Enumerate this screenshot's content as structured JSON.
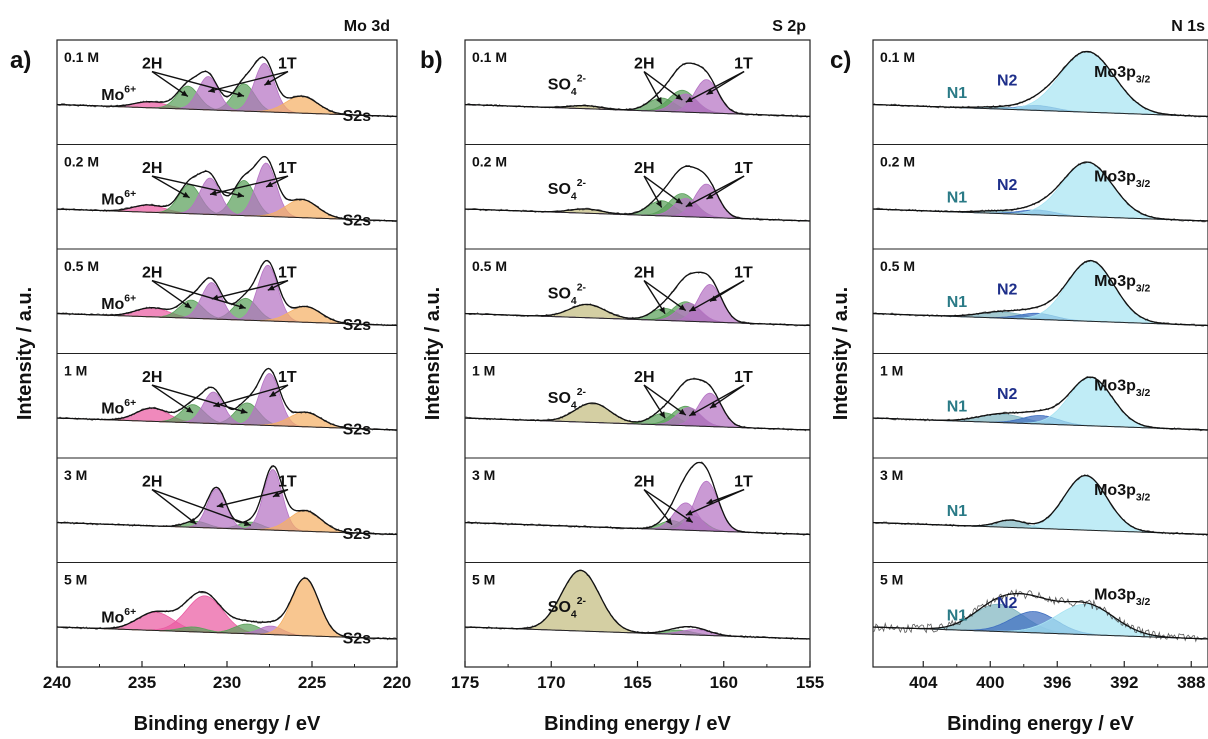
{
  "chart_data": [
    {
      "type": "line",
      "panel_label": "a)",
      "title": "Mo 3d",
      "xlabel": "Binding energy / eV",
      "ylabel": "Intensity / a.u.",
      "xlim": [
        240,
        220
      ],
      "xticks": [
        240,
        235,
        230,
        225,
        220
      ],
      "yticks": "none",
      "stack": [
        {
          "concentration": "0.1 M",
          "labels": [
            "Mo6+",
            "2H",
            "1T",
            "S2s"
          ],
          "components": [
            {
              "name": "Mo6+",
              "color": "#ea5ba2",
              "center": 234.5,
              "fwhm": 2.2,
              "height": 0.1
            },
            {
              "name": "2H",
              "color": "#5aa05a",
              "center": 232.3,
              "fwhm": 1.5,
              "height": 0.38
            },
            {
              "name": "2H",
              "color": "#5aa05a",
              "center": 229.0,
              "fwhm": 1.5,
              "height": 0.45
            },
            {
              "name": "1T",
              "color": "#b573c4",
              "center": 231.1,
              "fwhm": 1.4,
              "height": 0.55
            },
            {
              "name": "1T",
              "color": "#b573c4",
              "center": 227.8,
              "fwhm": 1.4,
              "height": 0.8
            },
            {
              "name": "S2s",
              "color": "#f5b065",
              "center": 225.6,
              "fwhm": 2.2,
              "height": 0.28
            }
          ]
        },
        {
          "concentration": "0.2 M",
          "labels": [
            "Mo6+",
            "2H",
            "1T",
            "S2s"
          ],
          "components": [
            {
              "name": "Mo6+",
              "color": "#ea5ba2",
              "center": 234.6,
              "fwhm": 2.2,
              "height": 0.12
            },
            {
              "name": "2H",
              "color": "#5aa05a",
              "center": 232.2,
              "fwhm": 1.5,
              "height": 0.48
            },
            {
              "name": "2H",
              "color": "#5aa05a",
              "center": 229.0,
              "fwhm": 1.5,
              "height": 0.58
            },
            {
              "name": "1T",
              "color": "#b573c4",
              "center": 231.0,
              "fwhm": 1.4,
              "height": 0.6
            },
            {
              "name": "1T",
              "color": "#b573c4",
              "center": 227.7,
              "fwhm": 1.4,
              "height": 0.88
            },
            {
              "name": "S2s",
              "color": "#f5b065",
              "center": 225.6,
              "fwhm": 2.2,
              "height": 0.3
            }
          ]
        },
        {
          "concentration": "0.5 M",
          "labels": [
            "Mo6+",
            "2H",
            "1T",
            "S2s"
          ],
          "components": [
            {
              "name": "Mo6+",
              "color": "#ea5ba2",
              "center": 234.4,
              "fwhm": 2.3,
              "height": 0.15
            },
            {
              "name": "2H",
              "color": "#5aa05a",
              "center": 232.1,
              "fwhm": 1.6,
              "height": 0.3
            },
            {
              "name": "2H",
              "color": "#5aa05a",
              "center": 228.9,
              "fwhm": 1.6,
              "height": 0.36
            },
            {
              "name": "1T",
              "color": "#b573c4",
              "center": 230.9,
              "fwhm": 1.4,
              "height": 0.6
            },
            {
              "name": "1T",
              "color": "#b573c4",
              "center": 227.6,
              "fwhm": 1.4,
              "height": 0.92
            },
            {
              "name": "S2s",
              "color": "#f5b065",
              "center": 225.4,
              "fwhm": 2.2,
              "height": 0.26
            }
          ]
        },
        {
          "concentration": "1 M",
          "labels": [
            "Mo6+",
            "2H",
            "1T",
            "S2s"
          ],
          "components": [
            {
              "name": "Mo6+",
              "color": "#ea5ba2",
              "center": 234.4,
              "fwhm": 2.2,
              "height": 0.22
            },
            {
              "name": "2H",
              "color": "#5aa05a",
              "center": 232.0,
              "fwhm": 1.6,
              "height": 0.3
            },
            {
              "name": "2H",
              "color": "#5aa05a",
              "center": 228.8,
              "fwhm": 1.6,
              "height": 0.36
            },
            {
              "name": "1T",
              "color": "#b573c4",
              "center": 230.8,
              "fwhm": 1.4,
              "height": 0.52
            },
            {
              "name": "1T",
              "color": "#b573c4",
              "center": 227.5,
              "fwhm": 1.4,
              "height": 0.86
            },
            {
              "name": "S2s",
              "color": "#f5b065",
              "center": 225.4,
              "fwhm": 2.2,
              "height": 0.24
            }
          ]
        },
        {
          "concentration": "3 M",
          "labels": [
            "2H",
            "1T",
            "S2s"
          ],
          "components": [
            {
              "name": "2H",
              "color": "#5aa05a",
              "center": 231.8,
              "fwhm": 1.6,
              "height": 0.1
            },
            {
              "name": "2H",
              "color": "#5aa05a",
              "center": 228.6,
              "fwhm": 1.6,
              "height": 0.12
            },
            {
              "name": "1T",
              "color": "#b573c4",
              "center": 230.6,
              "fwhm": 1.3,
              "height": 0.65
            },
            {
              "name": "1T",
              "color": "#b573c4",
              "center": 227.3,
              "fwhm": 1.3,
              "height": 1.0
            },
            {
              "name": "S2s",
              "color": "#f5b065",
              "center": 225.4,
              "fwhm": 2.2,
              "height": 0.34
            }
          ]
        },
        {
          "concentration": "5 M",
          "labels": [
            "Mo6+",
            "S2s"
          ],
          "components": [
            {
              "name": "Mo6+",
              "color": "#ea5ba2",
              "center": 234.2,
              "fwhm": 2.5,
              "height": 0.3
            },
            {
              "name": "Mo6+",
              "color": "#ea5ba2",
              "center": 231.3,
              "fwhm": 2.5,
              "height": 0.6
            },
            {
              "name": "2H",
              "color": "#5aa05a",
              "center": 232.0,
              "fwhm": 1.8,
              "height": 0.08
            },
            {
              "name": "2H",
              "color": "#5aa05a",
              "center": 228.8,
              "fwhm": 1.8,
              "height": 0.16
            },
            {
              "name": "1T",
              "color": "#b573c4",
              "center": 227.4,
              "fwhm": 1.6,
              "height": 0.14
            },
            {
              "name": "S2s",
              "color": "#f5b065",
              "center": 225.4,
              "fwhm": 1.9,
              "height": 0.95
            }
          ]
        }
      ]
    },
    {
      "type": "line",
      "panel_label": "b)",
      "title": "S 2p",
      "xlabel": "Binding energy / eV",
      "ylabel": "Intensity / a.u.",
      "xlim": [
        175,
        155
      ],
      "xticks": [
        175,
        170,
        165,
        160,
        155
      ],
      "yticks": "none",
      "stack": [
        {
          "concentration": "0.1 M",
          "labels": [
            "SO42-",
            "2H",
            "1T"
          ],
          "components": [
            {
              "name": "SO42-",
              "color": "#c3bc80",
              "center": 168.0,
              "fwhm": 2.2,
              "height": 0.05
            },
            {
              "name": "2H",
              "color": "#5aa05a",
              "center": 163.6,
              "fwhm": 1.8,
              "height": 0.22
            },
            {
              "name": "2H",
              "color": "#5aa05a",
              "center": 162.4,
              "fwhm": 1.8,
              "height": 0.36
            },
            {
              "name": "1T",
              "color": "#b573c4",
              "center": 162.2,
              "fwhm": 1.6,
              "height": 0.3
            },
            {
              "name": "1T",
              "color": "#b573c4",
              "center": 161.0,
              "fwhm": 1.6,
              "height": 0.55
            }
          ]
        },
        {
          "concentration": "0.2 M",
          "labels": [
            "SO42-",
            "2H",
            "1T"
          ],
          "components": [
            {
              "name": "SO42-",
              "color": "#c3bc80",
              "center": 168.0,
              "fwhm": 2.2,
              "height": 0.07
            },
            {
              "name": "2H",
              "color": "#5aa05a",
              "center": 163.6,
              "fwhm": 1.8,
              "height": 0.25
            },
            {
              "name": "2H",
              "color": "#5aa05a",
              "center": 162.4,
              "fwhm": 1.8,
              "height": 0.38
            },
            {
              "name": "1T",
              "color": "#b573c4",
              "center": 162.2,
              "fwhm": 1.6,
              "height": 0.3
            },
            {
              "name": "1T",
              "color": "#b573c4",
              "center": 161.0,
              "fwhm": 1.6,
              "height": 0.55
            }
          ]
        },
        {
          "concentration": "0.5 M",
          "labels": [
            "SO42-",
            "2H",
            "1T"
          ],
          "components": [
            {
              "name": "SO42-",
              "color": "#c3bc80",
              "center": 167.9,
              "fwhm": 2.4,
              "height": 0.22
            },
            {
              "name": "2H",
              "color": "#5aa05a",
              "center": 163.4,
              "fwhm": 1.8,
              "height": 0.2
            },
            {
              "name": "2H",
              "color": "#5aa05a",
              "center": 162.2,
              "fwhm": 1.8,
              "height": 0.32
            },
            {
              "name": "1T",
              "color": "#b573c4",
              "center": 162.0,
              "fwhm": 1.6,
              "height": 0.3
            },
            {
              "name": "1T",
              "color": "#b573c4",
              "center": 160.8,
              "fwhm": 1.6,
              "height": 0.62
            }
          ]
        },
        {
          "concentration": "1 M",
          "labels": [
            "SO42-",
            "2H",
            "1T"
          ],
          "components": [
            {
              "name": "SO42-",
              "color": "#c3bc80",
              "center": 167.6,
              "fwhm": 2.4,
              "height": 0.32
            },
            {
              "name": "2H",
              "color": "#5aa05a",
              "center": 163.4,
              "fwhm": 1.8,
              "height": 0.2
            },
            {
              "name": "2H",
              "color": "#5aa05a",
              "center": 162.2,
              "fwhm": 1.8,
              "height": 0.32
            },
            {
              "name": "1T",
              "color": "#b573c4",
              "center": 162.0,
              "fwhm": 1.6,
              "height": 0.3
            },
            {
              "name": "1T",
              "color": "#b573c4",
              "center": 160.8,
              "fwhm": 1.6,
              "height": 0.55
            }
          ]
        },
        {
          "concentration": "3 M",
          "labels": [
            "2H",
            "1T"
          ],
          "components": [
            {
              "name": "2H",
              "color": "#5aa05a",
              "center": 163.0,
              "fwhm": 1.6,
              "height": 0.15
            },
            {
              "name": "2H",
              "color": "#5aa05a",
              "center": 161.8,
              "fwhm": 1.6,
              "height": 0.24
            },
            {
              "name": "1T",
              "color": "#b573c4",
              "center": 162.2,
              "fwhm": 1.6,
              "height": 0.45
            },
            {
              "name": "1T",
              "color": "#b573c4",
              "center": 161.0,
              "fwhm": 1.6,
              "height": 0.82
            }
          ]
        },
        {
          "concentration": "5 M",
          "labels": [
            "SO42-"
          ],
          "components": [
            {
              "name": "SO42-",
              "color": "#c3bc80",
              "center": 168.3,
              "fwhm": 2.6,
              "height": 1.0
            },
            {
              "name": "2H",
              "color": "#5aa05a",
              "center": 162.6,
              "fwhm": 2.0,
              "height": 0.07
            },
            {
              "name": "1T",
              "color": "#b573c4",
              "center": 161.6,
              "fwhm": 2.0,
              "height": 0.09
            }
          ]
        }
      ]
    },
    {
      "type": "line",
      "panel_label": "c)",
      "title": "N 1s",
      "xlabel": "Binding energy / eV",
      "ylabel": "Intensity / a.u.",
      "xlim": [
        407,
        387
      ],
      "xticks": [
        404,
        400,
        396,
        392,
        388
      ],
      "yticks": "none",
      "stack": [
        {
          "concentration": "0.1 M",
          "labels": [
            "N1",
            "N2",
            "Mo3p3/2"
          ],
          "components": [
            {
              "name": "N1",
              "color": "#7fb5c0",
              "center": 399.5,
              "fwhm": 3.0,
              "height": 0.03
            },
            {
              "name": "N2",
              "color": "#3f6fc0",
              "center": 397.2,
              "fwhm": 2.5,
              "height": 0.08
            },
            {
              "name": "Mo3p3/2",
              "color": "#a8e4f2",
              "center": 394.2,
              "fwhm": 3.8,
              "height": 1.0
            }
          ]
        },
        {
          "concentration": "0.2 M",
          "labels": [
            "N1",
            "N2",
            "Mo3p3/2"
          ],
          "components": [
            {
              "name": "N1",
              "color": "#7fb5c0",
              "center": 399.5,
              "fwhm": 3.0,
              "height": 0.04
            },
            {
              "name": "N2",
              "color": "#3f6fc0",
              "center": 397.2,
              "fwhm": 2.5,
              "height": 0.08
            },
            {
              "name": "Mo3p3/2",
              "color": "#a8e4f2",
              "center": 394.2,
              "fwhm": 3.5,
              "height": 0.9
            }
          ]
        },
        {
          "concentration": "0.5 M",
          "labels": [
            "N1",
            "N2",
            "Mo3p3/2"
          ],
          "components": [
            {
              "name": "N1",
              "color": "#7fb5c0",
              "center": 399.3,
              "fwhm": 3.2,
              "height": 0.1
            },
            {
              "name": "N2",
              "color": "#3f6fc0",
              "center": 397.2,
              "fwhm": 2.5,
              "height": 0.1
            },
            {
              "name": "Mo3p3/2",
              "color": "#a8e4f2",
              "center": 394.0,
              "fwhm": 3.3,
              "height": 1.0
            }
          ]
        },
        {
          "concentration": "1 M",
          "labels": [
            "N1",
            "N2",
            "Mo3p3/2"
          ],
          "components": [
            {
              "name": "N1",
              "color": "#7fb5c0",
              "center": 399.3,
              "fwhm": 3.2,
              "height": 0.14
            },
            {
              "name": "N2",
              "color": "#3f6fc0",
              "center": 397.0,
              "fwhm": 2.5,
              "height": 0.14
            },
            {
              "name": "Mo3p3/2",
              "color": "#a8e4f2",
              "center": 394.0,
              "fwhm": 3.0,
              "height": 0.8
            }
          ]
        },
        {
          "concentration": "3 M",
          "labels": [
            "N1",
            "Mo3p3/2"
          ],
          "components": [
            {
              "name": "N1",
              "color": "#7fb5c0",
              "center": 398.8,
              "fwhm": 2.0,
              "height": 0.12
            },
            {
              "name": "Mo3p3/2",
              "color": "#a8e4f2",
              "center": 394.3,
              "fwhm": 3.0,
              "height": 0.9
            }
          ]
        },
        {
          "concentration": "5 M",
          "labels": [
            "N1",
            "N2",
            "Mo3p3/2"
          ],
          "components": [
            {
              "name": "N1",
              "color": "#7fb5c0",
              "center": 399.5,
              "fwhm": 3.5,
              "height": 0.45
            },
            {
              "name": "N2",
              "color": "#3f6fc0",
              "center": 397.4,
              "fwhm": 3.2,
              "height": 0.35
            },
            {
              "name": "Mo3p3/2",
              "color": "#a8e4f2",
              "center": 394.3,
              "fwhm": 4.0,
              "height": 0.5
            }
          ]
        }
      ]
    }
  ]
}
